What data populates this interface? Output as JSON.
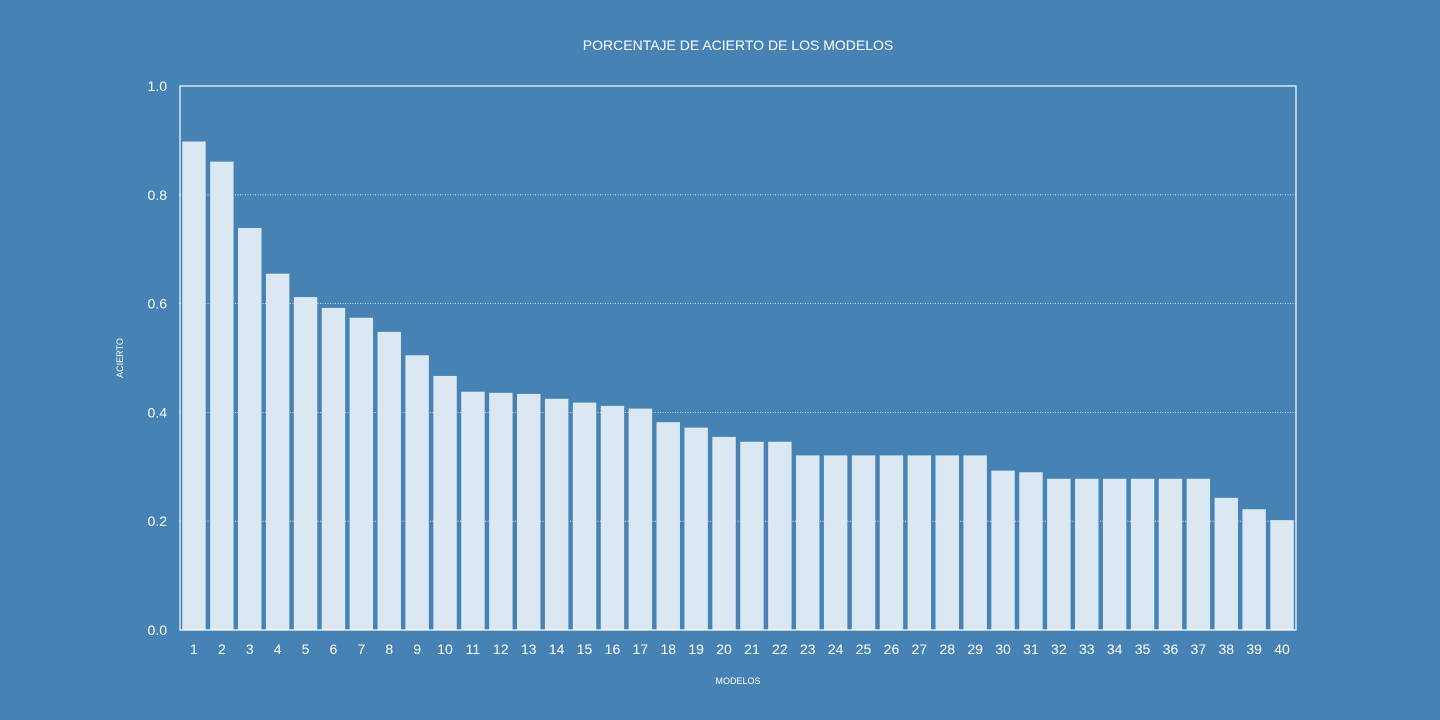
{
  "chart_data": {
    "type": "bar",
    "title": "PORCENTAJE DE ACIERTO DE LOS MODELOS",
    "xlabel": "MODELOS",
    "ylabel": "ACIERTO",
    "categories": [
      "1",
      "2",
      "3",
      "4",
      "5",
      "6",
      "7",
      "8",
      "9",
      "10",
      "11",
      "12",
      "13",
      "14",
      "15",
      "16",
      "17",
      "18",
      "19",
      "20",
      "21",
      "22",
      "23",
      "24",
      "25",
      "26",
      "27",
      "28",
      "29",
      "30",
      "31",
      "32",
      "33",
      "34",
      "35",
      "36",
      "37",
      "38",
      "39",
      "40"
    ],
    "values": [
      0.898,
      0.861,
      0.739,
      0.655,
      0.612,
      0.592,
      0.574,
      0.548,
      0.505,
      0.467,
      0.438,
      0.436,
      0.434,
      0.425,
      0.418,
      0.412,
      0.407,
      0.382,
      0.372,
      0.355,
      0.346,
      0.346,
      0.321,
      0.321,
      0.321,
      0.321,
      0.321,
      0.321,
      0.321,
      0.293,
      0.29,
      0.278,
      0.278,
      0.278,
      0.278,
      0.278,
      0.278,
      0.243,
      0.222,
      0.202
    ],
    "ylim": [
      0,
      1.0
    ],
    "yticks": [
      "0.0",
      "0.2",
      "0.4",
      "0.6",
      "0.8",
      "1.0"
    ],
    "grid": true,
    "colors": {
      "background": "#4682b4",
      "bar": "#dbe8f2",
      "text": "#ffffff"
    }
  }
}
